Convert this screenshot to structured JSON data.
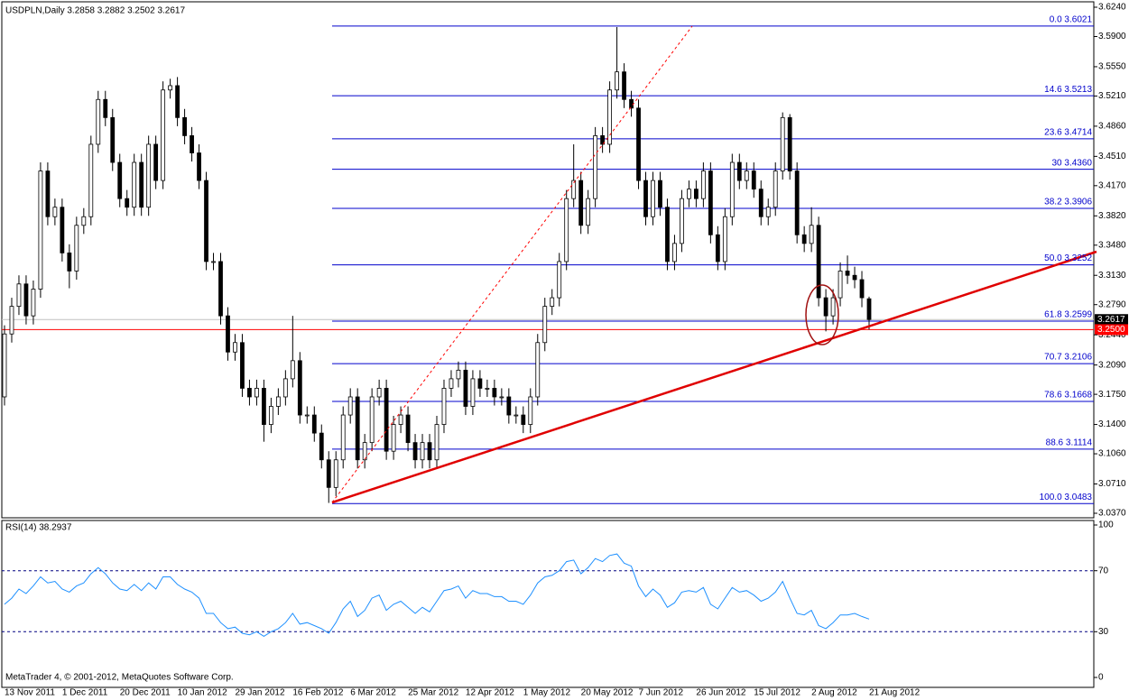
{
  "chart_data": [
    {
      "type": "candlestick",
      "title": "USDPLN,Daily  3.2858 3.2882 3.2502 3.2617",
      "categories": [
        "13 Nov 2011",
        null,
        null,
        null,
        null,
        null,
        null,
        null,
        "1 Dec 2011",
        null,
        null,
        null,
        null,
        null,
        null,
        null,
        "20 Dec 2011",
        null,
        null,
        null,
        null,
        null,
        null,
        null,
        "10 Jan 2012",
        null,
        null,
        null,
        null,
        null,
        null,
        null,
        "29 Jan 2012",
        null,
        null,
        null,
        null,
        null,
        null,
        null,
        "16 Feb 2012",
        null,
        null,
        null,
        null,
        null,
        null,
        null,
        "6 Mar 2012",
        null,
        null,
        null,
        null,
        null,
        null,
        null,
        "25 Mar 2012",
        null,
        null,
        null,
        null,
        null,
        null,
        null,
        "12 Apr 2012",
        null,
        null,
        null,
        null,
        null,
        null,
        null,
        "1 May 2012",
        null,
        null,
        null,
        null,
        null,
        null,
        null,
        "20 May 2012",
        null,
        null,
        null,
        null,
        null,
        null,
        null,
        "7 Jun 2012",
        null,
        null,
        null,
        null,
        null,
        null,
        null,
        "26 Jun 2012",
        null,
        null,
        null,
        null,
        null,
        null,
        null,
        "15 Jul 2012",
        null,
        null,
        null,
        null,
        null,
        null,
        null,
        "2 Aug 2012",
        null,
        null,
        null,
        null,
        null,
        null,
        null,
        "21 Aug 2012"
      ],
      "open": [
        3.172,
        3.245,
        3.277,
        3.303,
        3.266,
        3.297,
        3.434,
        3.381,
        3.392,
        3.339,
        3.318,
        3.371,
        3.381,
        3.465,
        3.517,
        3.496,
        3.444,
        3.402,
        3.392,
        3.444,
        3.392,
        3.465,
        3.423,
        3.528,
        3.533,
        3.496,
        3.475,
        3.455,
        3.423,
        3.329,
        3.329,
        3.266,
        3.224,
        3.235,
        3.182,
        3.172,
        3.182,
        3.14,
        3.161,
        3.172,
        3.193,
        3.214,
        3.151,
        3.151,
        3.13,
        3.099,
        3.067,
        3.099,
        3.151,
        3.172,
        3.099,
        3.119,
        3.172,
        3.182,
        3.109,
        3.14,
        3.151,
        3.119,
        3.099,
        3.119,
        3.099,
        3.14,
        3.182,
        3.193,
        3.203,
        3.161,
        3.193,
        3.182,
        3.182,
        3.172,
        3.172,
        3.151,
        3.151,
        3.14,
        3.172,
        3.235,
        3.277,
        3.287,
        3.329,
        3.402,
        3.423,
        3.371,
        3.402,
        3.475,
        3.465,
        3.528,
        3.549,
        3.517,
        3.507,
        3.423,
        3.381,
        3.423,
        3.392,
        3.329,
        3.35,
        3.402,
        3.413,
        3.402,
        3.434,
        3.36,
        3.329,
        3.381,
        3.444,
        3.423,
        3.434,
        3.413,
        3.381,
        3.392,
        3.434,
        3.496,
        3.434,
        3.36,
        3.35,
        3.371,
        3.287,
        3.266,
        3.287,
        3.318,
        3.313,
        3.308,
        3.2858
      ],
      "high": [
        3.255,
        3.287,
        3.313,
        3.313,
        3.307,
        3.444,
        3.444,
        3.402,
        3.402,
        3.349,
        3.381,
        3.391,
        3.475,
        3.527,
        3.527,
        3.506,
        3.454,
        3.412,
        3.454,
        3.454,
        3.475,
        3.475,
        3.538,
        3.541,
        3.543,
        3.506,
        3.485,
        3.465,
        3.433,
        3.339,
        3.339,
        3.276,
        3.245,
        3.245,
        3.192,
        3.192,
        3.192,
        3.171,
        3.182,
        3.203,
        3.266,
        3.224,
        3.161,
        3.161,
        3.14,
        3.109,
        3.109,
        3.161,
        3.182,
        3.182,
        3.129,
        3.182,
        3.192,
        3.192,
        3.15,
        3.161,
        3.161,
        3.129,
        3.129,
        3.129,
        3.15,
        3.192,
        3.203,
        3.213,
        3.213,
        3.203,
        3.203,
        3.192,
        3.192,
        3.182,
        3.182,
        3.161,
        3.161,
        3.182,
        3.245,
        3.287,
        3.297,
        3.339,
        3.412,
        3.465,
        3.433,
        3.412,
        3.485,
        3.485,
        3.538,
        3.601,
        3.559,
        3.527,
        3.517,
        3.433,
        3.433,
        3.433,
        3.402,
        3.36,
        3.412,
        3.423,
        3.423,
        3.444,
        3.444,
        3.37,
        3.391,
        3.454,
        3.454,
        3.444,
        3.444,
        3.423,
        3.402,
        3.444,
        3.502,
        3.5,
        3.444,
        3.37,
        3.392,
        3.381,
        3.297,
        3.297,
        3.328,
        3.336,
        3.323,
        3.318,
        3.2882
      ],
      "low": [
        3.162,
        3.235,
        3.267,
        3.256,
        3.256,
        3.287,
        3.371,
        3.371,
        3.329,
        3.298,
        3.308,
        3.361,
        3.371,
        3.455,
        3.486,
        3.434,
        3.392,
        3.382,
        3.382,
        3.382,
        3.382,
        3.413,
        3.413,
        3.518,
        3.486,
        3.465,
        3.445,
        3.413,
        3.319,
        3.319,
        3.256,
        3.214,
        3.214,
        3.172,
        3.162,
        3.162,
        3.12,
        3.13,
        3.151,
        3.162,
        3.183,
        3.141,
        3.141,
        3.12,
        3.089,
        3.049,
        3.057,
        3.089,
        3.141,
        3.089,
        3.089,
        3.109,
        3.162,
        3.099,
        3.099,
        3.13,
        3.109,
        3.089,
        3.089,
        3.089,
        3.089,
        3.13,
        3.172,
        3.183,
        3.151,
        3.151,
        3.172,
        3.172,
        3.162,
        3.162,
        3.141,
        3.141,
        3.13,
        3.13,
        3.162,
        3.225,
        3.267,
        3.277,
        3.319,
        3.392,
        3.361,
        3.361,
        3.392,
        3.455,
        3.455,
        3.518,
        3.507,
        3.497,
        3.413,
        3.371,
        3.371,
        3.382,
        3.319,
        3.319,
        3.34,
        3.392,
        3.392,
        3.392,
        3.35,
        3.319,
        3.319,
        3.371,
        3.413,
        3.413,
        3.403,
        3.371,
        3.371,
        3.382,
        3.424,
        3.424,
        3.35,
        3.34,
        3.34,
        3.277,
        3.248,
        3.256,
        3.277,
        3.303,
        3.298,
        3.276,
        3.2502
      ],
      "close": [
        3.245,
        3.277,
        3.303,
        3.266,
        3.297,
        3.434,
        3.381,
        3.392,
        3.339,
        3.318,
        3.371,
        3.381,
        3.465,
        3.517,
        3.496,
        3.444,
        3.402,
        3.392,
        3.444,
        3.392,
        3.465,
        3.423,
        3.528,
        3.533,
        3.496,
        3.475,
        3.455,
        3.423,
        3.329,
        3.329,
        3.266,
        3.224,
        3.235,
        3.182,
        3.172,
        3.182,
        3.14,
        3.161,
        3.172,
        3.193,
        3.214,
        3.151,
        3.151,
        3.13,
        3.099,
        3.067,
        3.099,
        3.151,
        3.172,
        3.099,
        3.119,
        3.172,
        3.182,
        3.109,
        3.14,
        3.151,
        3.119,
        3.099,
        3.119,
        3.099,
        3.14,
        3.182,
        3.193,
        3.203,
        3.161,
        3.193,
        3.182,
        3.182,
        3.172,
        3.172,
        3.151,
        3.151,
        3.14,
        3.172,
        3.235,
        3.277,
        3.287,
        3.329,
        3.402,
        3.423,
        3.371,
        3.402,
        3.475,
        3.465,
        3.528,
        3.549,
        3.517,
        3.507,
        3.423,
        3.381,
        3.423,
        3.392,
        3.329,
        3.35,
        3.402,
        3.413,
        3.402,
        3.434,
        3.36,
        3.329,
        3.381,
        3.444,
        3.423,
        3.434,
        3.413,
        3.381,
        3.392,
        3.434,
        3.496,
        3.434,
        3.36,
        3.35,
        3.371,
        3.287,
        3.266,
        3.287,
        3.318,
        3.313,
        3.308,
        3.287,
        3.2617
      ],
      "ylim": [
        3.037,
        3.624
      ],
      "yticks": [
        {
          "value": 3.624,
          "label": "3.6240"
        },
        {
          "value": 3.59,
          "label": "3.5900"
        },
        {
          "value": 3.555,
          "label": "3.5550"
        },
        {
          "value": 3.521,
          "label": "3.5210"
        },
        {
          "value": 3.486,
          "label": "3.4860"
        },
        {
          "value": 3.451,
          "label": "3.4510"
        },
        {
          "value": 3.417,
          "label": "3.4170"
        },
        {
          "value": 3.382,
          "label": "3.3820"
        },
        {
          "value": 3.348,
          "label": "3.3480"
        },
        {
          "value": 3.313,
          "label": "3.3130"
        },
        {
          "value": 3.279,
          "label": "3.2790"
        },
        {
          "value": 3.244,
          "label": "3.2440"
        },
        {
          "value": 3.209,
          "label": "3.2090"
        },
        {
          "value": 3.175,
          "label": "3.1750"
        },
        {
          "value": 3.14,
          "label": "3.1400"
        },
        {
          "value": 3.106,
          "label": "3.1060"
        },
        {
          "value": 3.071,
          "label": "3.0710"
        },
        {
          "value": 3.037,
          "label": "3.0370"
        }
      ],
      "fibonacci": [
        {
          "value": 3.6021,
          "label": "0.0 3.6021"
        },
        {
          "value": 3.5213,
          "label": "14.6 3.5213"
        },
        {
          "value": 3.4714,
          "label": "23.6 3.4714"
        },
        {
          "value": 3.436,
          "label": "30 3.4360"
        },
        {
          "value": 3.3906,
          "label": "38.2 3.3906"
        },
        {
          "value": 3.3252,
          "label": "50.0 3.3252"
        },
        {
          "value": 3.2599,
          "label": "61.8 3.2599"
        },
        {
          "value": 3.2106,
          "label": "70.7 3.2106"
        },
        {
          "value": 3.1668,
          "label": "78.6 3.1668"
        },
        {
          "value": 3.1114,
          "label": "88.6 3.1114"
        },
        {
          "value": 3.0483,
          "label": "100.0 3.0483"
        }
      ],
      "fib_color": "#0000cc",
      "price_lines": [
        {
          "value": 3.2617,
          "label": "3.2617",
          "color": "#c0c0c0",
          "box": "#000000"
        },
        {
          "value": 3.25,
          "label": "3.2500",
          "color": "#ff0000",
          "box": "#ff0000"
        }
      ]
    },
    {
      "type": "line",
      "title": "RSI(14) 38.2937",
      "color": "#1e90ff",
      "values": [
        48,
        52,
        58,
        55,
        60,
        66,
        62,
        63,
        58,
        56,
        60,
        62,
        68,
        72,
        68,
        62,
        58,
        57,
        61,
        57,
        62,
        58,
        66,
        66,
        61,
        58,
        56,
        52,
        42,
        42,
        36,
        32,
        33,
        29,
        28,
        30,
        27,
        30,
        32,
        36,
        42,
        35,
        36,
        34,
        32,
        29,
        36,
        45,
        50,
        40,
        44,
        52,
        54,
        44,
        48,
        50,
        46,
        42,
        46,
        43,
        50,
        57,
        58,
        60,
        52,
        57,
        55,
        55,
        53,
        53,
        50,
        50,
        48,
        54,
        62,
        66,
        67,
        70,
        76,
        77,
        68,
        72,
        78,
        76,
        80,
        81,
        75,
        73,
        60,
        53,
        58,
        54,
        46,
        49,
        56,
        57,
        56,
        59,
        48,
        45,
        52,
        59,
        56,
        57,
        54,
        50,
        52,
        56,
        63,
        52,
        42,
        41,
        44,
        34,
        32,
        36,
        41,
        41,
        42,
        40,
        38.2937
      ],
      "ylim": [
        0,
        100
      ],
      "yticks": [
        100,
        70,
        30,
        0
      ],
      "levels": [
        70,
        30
      ]
    }
  ],
  "footer": "MetaTrader 4, © 2001-2012, MetaQuotes Software Corp."
}
